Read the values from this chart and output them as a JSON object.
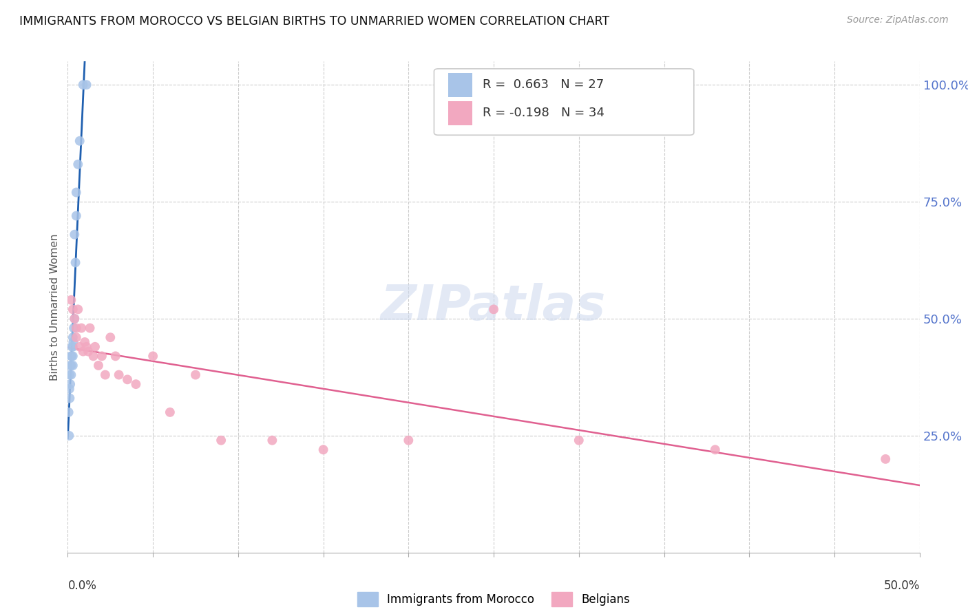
{
  "title": "IMMIGRANTS FROM MOROCCO VS BELGIAN BIRTHS TO UNMARRIED WOMEN CORRELATION CHART",
  "source": "Source: ZipAtlas.com",
  "ylabel": "Births to Unmarried Women",
  "legend_label1": "Immigrants from Morocco",
  "legend_label2": "Belgians",
  "legend_r1": "R =  0.663",
  "legend_n1": "N = 27",
  "legend_r2": "R = -0.198",
  "legend_n2": "N = 34",
  "color_morocco": "#a8c4e8",
  "color_belgians": "#f2a8c0",
  "color_morocco_line": "#2060b0",
  "color_belgians_line": "#e06090",
  "color_ytick_right": "#5575cc",
  "background_color": "#ffffff",
  "morocco_x": [
    0.0005,
    0.0008,
    0.001,
    0.001,
    0.0012,
    0.0015,
    0.0015,
    0.002,
    0.002,
    0.002,
    0.0022,
    0.0025,
    0.003,
    0.003,
    0.003,
    0.003,
    0.0032,
    0.0035,
    0.004,
    0.004,
    0.0045,
    0.005,
    0.005,
    0.006,
    0.007,
    0.009,
    0.011
  ],
  "morocco_y": [
    0.3,
    0.25,
    0.38,
    0.35,
    0.33,
    0.4,
    0.36,
    0.42,
    0.4,
    0.38,
    0.42,
    0.44,
    0.46,
    0.44,
    0.42,
    0.4,
    0.45,
    0.48,
    0.5,
    0.68,
    0.62,
    0.72,
    0.77,
    0.83,
    0.88,
    1.0,
    1.0
  ],
  "belgians_x": [
    0.002,
    0.003,
    0.004,
    0.005,
    0.005,
    0.006,
    0.007,
    0.008,
    0.009,
    0.01,
    0.011,
    0.012,
    0.013,
    0.015,
    0.016,
    0.018,
    0.02,
    0.022,
    0.025,
    0.028,
    0.03,
    0.035,
    0.04,
    0.05,
    0.06,
    0.075,
    0.09,
    0.12,
    0.15,
    0.2,
    0.25,
    0.3,
    0.38,
    0.48
  ],
  "belgians_y": [
    0.54,
    0.52,
    0.5,
    0.46,
    0.48,
    0.52,
    0.44,
    0.48,
    0.43,
    0.45,
    0.44,
    0.43,
    0.48,
    0.42,
    0.44,
    0.4,
    0.42,
    0.38,
    0.46,
    0.42,
    0.38,
    0.37,
    0.36,
    0.42,
    0.3,
    0.38,
    0.24,
    0.24,
    0.22,
    0.24,
    0.52,
    0.24,
    0.22,
    0.2
  ],
  "xlim": [
    0.0,
    0.5
  ],
  "ylim": [
    0.0,
    1.05
  ],
  "xtick_positions": [
    0.0,
    0.05,
    0.1,
    0.15,
    0.2,
    0.25,
    0.3,
    0.35,
    0.4,
    0.45,
    0.5
  ],
  "ytick_values": [
    0.25,
    0.5,
    0.75,
    1.0
  ],
  "ytick_labels": [
    "25.0%",
    "50.0%",
    "75.0%",
    "100.0%"
  ]
}
